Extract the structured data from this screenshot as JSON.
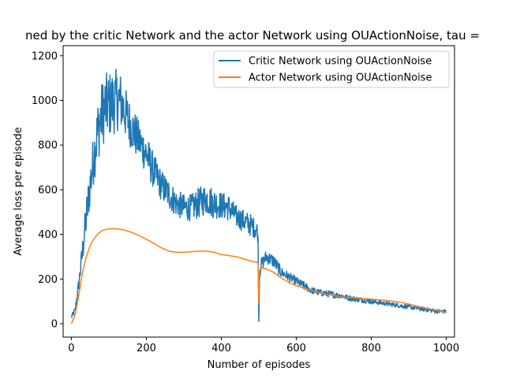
{
  "chart_data": {
    "type": "line",
    "title": "ned by the critic Network and the actor Network using OUActionNoise, tau =",
    "xlabel": "Number of episodes",
    "ylabel": "Average loss per episode",
    "xlim": [
      -22,
      1022
    ],
    "ylim": [
      -60,
      1245
    ],
    "xticks": [
      0,
      200,
      400,
      600,
      800,
      1000
    ],
    "yticks": [
      0,
      200,
      400,
      600,
      800,
      1000,
      1200
    ],
    "grid": false,
    "legend_position": "top-right",
    "series": [
      {
        "name": "Critic Network using OUActionNoise",
        "color": "#1f77b4",
        "x": [
          0,
          10,
          20,
          30,
          40,
          50,
          60,
          70,
          80,
          90,
          100,
          110,
          120,
          130,
          140,
          150,
          160,
          170,
          180,
          190,
          200,
          220,
          240,
          260,
          280,
          300,
          320,
          340,
          360,
          380,
          400,
          420,
          440,
          460,
          480,
          495,
          498,
          500,
          502,
          505,
          520,
          540,
          560,
          580,
          600,
          620,
          640,
          660,
          680,
          700,
          720,
          740,
          760,
          780,
          800,
          820,
          840,
          860,
          880,
          900,
          920,
          940,
          960,
          980,
          1000
        ],
        "y": [
          30,
          60,
          180,
          330,
          480,
          620,
          750,
          860,
          930,
          970,
          980,
          990,
          1000,
          1000,
          960,
          920,
          880,
          850,
          820,
          790,
          760,
          680,
          620,
          580,
          540,
          520,
          520,
          540,
          560,
          540,
          530,
          520,
          480,
          460,
          440,
          420,
          380,
          10,
          200,
          260,
          300,
          280,
          230,
          210,
          190,
          170,
          150,
          140,
          135,
          130,
          125,
          115,
          110,
          105,
          100,
          95,
          90,
          85,
          80,
          75,
          70,
          65,
          60,
          55,
          55
        ],
        "noise": [
          10,
          15,
          30,
          60,
          90,
          100,
          120,
          140,
          150,
          150,
          150,
          150,
          140,
          130,
          120,
          110,
          100,
          100,
          90,
          90,
          90,
          80,
          70,
          70,
          60,
          60,
          60,
          70,
          70,
          70,
          60,
          60,
          50,
          50,
          50,
          40,
          20,
          0,
          20,
          30,
          30,
          30,
          25,
          20,
          20,
          20,
          15,
          15,
          15,
          15,
          12,
          12,
          12,
          12,
          12,
          10,
          10,
          10,
          10,
          10,
          10,
          10,
          10,
          10,
          8
        ]
      },
      {
        "name": "Actor Network using OUActionNoise",
        "color": "#ff7f0e",
        "x": [
          0,
          10,
          20,
          30,
          40,
          50,
          60,
          70,
          80,
          90,
          100,
          110,
          120,
          140,
          160,
          180,
          200,
          220,
          240,
          260,
          280,
          300,
          320,
          340,
          360,
          380,
          400,
          420,
          440,
          460,
          480,
          495,
          498,
          500,
          502,
          510,
          520,
          540,
          560,
          580,
          600,
          620,
          640,
          660,
          680,
          700,
          720,
          740,
          760,
          780,
          800,
          820,
          840,
          860,
          880,
          900,
          920,
          940,
          960,
          980,
          1000
        ],
        "y": [
          0,
          40,
          130,
          230,
          300,
          350,
          380,
          400,
          415,
          422,
          425,
          426,
          425,
          420,
          410,
          395,
          378,
          360,
          340,
          325,
          320,
          320,
          322,
          325,
          325,
          320,
          310,
          305,
          300,
          290,
          280,
          275,
          270,
          90,
          240,
          250,
          245,
          230,
          205,
          185,
          170,
          160,
          150,
          140,
          132,
          126,
          120,
          117,
          115,
          113,
          110,
          107,
          104,
          100,
          95,
          88,
          80,
          72,
          65,
          57,
          50
        ]
      }
    ]
  }
}
